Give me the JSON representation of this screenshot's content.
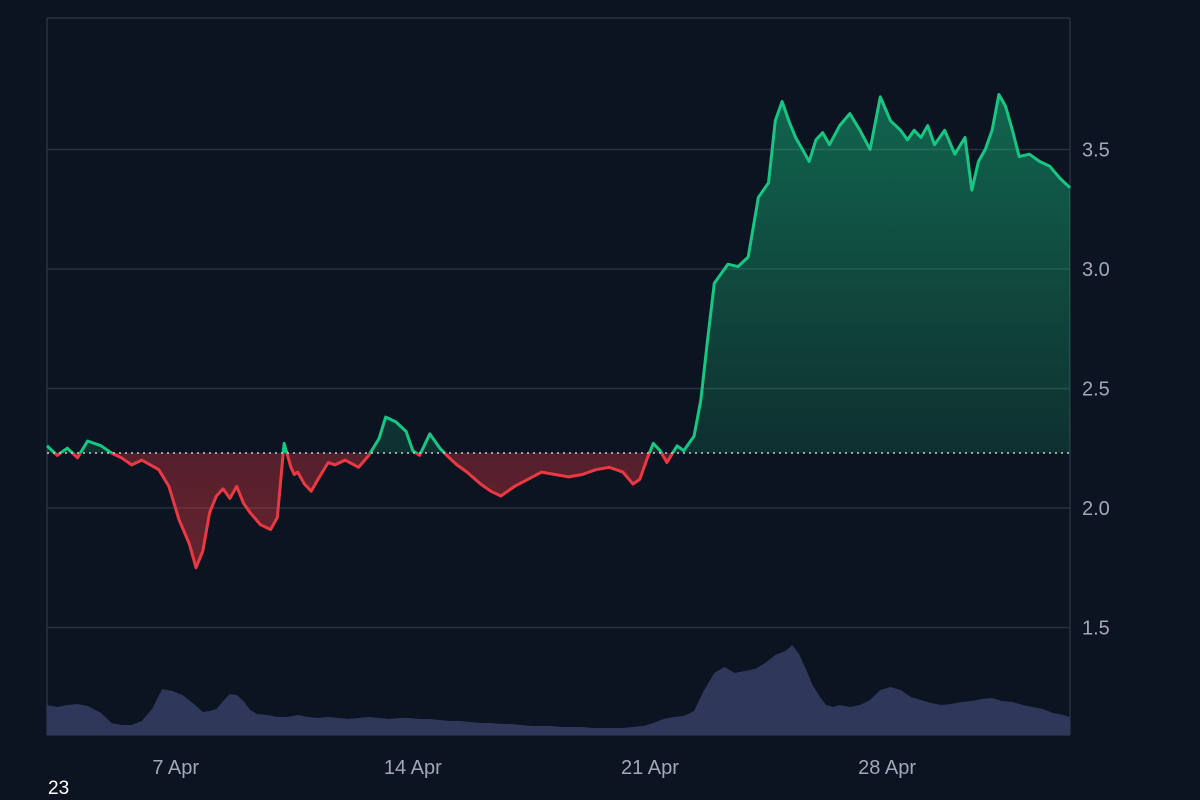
{
  "colors": {
    "background": "#0d1421",
    "grid": "#2b313f",
    "up": "#16c784",
    "down": "#ea3943",
    "volume": "#2f3a5f",
    "baseline": "#c8ccd6",
    "ticks": "#a1a7bb"
  },
  "corner_label": "23",
  "chart_data": {
    "type": "line",
    "title": "",
    "xlabel": "",
    "ylabel": "",
    "baseline_value": 2.23,
    "ylim": [
      1.05,
      4.05
    ],
    "y_ticks": [
      "1.5",
      "2.0",
      "2.5",
      "3.0",
      "3.5"
    ],
    "x_ticks": [
      {
        "label": "7 Apr",
        "day": 7
      },
      {
        "label": "14 Apr",
        "day": 14
      },
      {
        "label": "21 Apr",
        "day": 21
      },
      {
        "label": "28 Apr",
        "day": 28
      }
    ],
    "xlim_days": [
      3.2,
      33.4
    ],
    "grid": true,
    "series": [
      {
        "x_days": [
          3.2,
          3.5,
          3.8,
          4.1,
          4.4,
          4.8,
          5.1,
          5.4,
          5.7,
          6.0,
          6.5,
          6.8,
          7.1,
          7.4,
          7.6,
          7.8,
          8.0,
          8.2,
          8.4,
          8.6,
          8.8,
          9.0,
          9.2,
          9.5,
          9.8,
          10.0,
          10.2,
          10.4,
          10.5,
          10.6,
          10.8,
          11.0,
          11.2,
          11.5,
          11.7,
          12.0,
          12.4,
          12.7,
          13.0,
          13.2,
          13.5,
          13.8,
          14.0,
          14.2,
          14.5,
          14.8,
          15.0,
          15.3,
          15.6,
          16.0,
          16.3,
          16.6,
          17.0,
          17.4,
          17.8,
          18.2,
          18.6,
          19.0,
          19.4,
          19.8,
          20.2,
          20.5,
          20.7,
          20.9,
          21.1,
          21.3,
          21.5,
          21.8,
          22.0,
          22.3,
          22.5,
          22.7,
          22.9,
          23.1,
          23.3,
          23.6,
          23.9,
          24.2,
          24.5,
          24.7,
          24.9,
          25.1,
          25.3,
          25.5,
          25.7,
          25.9,
          26.1,
          26.3,
          26.6,
          26.9,
          27.2,
          27.5,
          27.8,
          28.1,
          28.4,
          28.6,
          28.8,
          29.0,
          29.2,
          29.4,
          29.7,
          30.0,
          30.3,
          30.5,
          30.7,
          30.9,
          31.1,
          31.3,
          31.5,
          31.7,
          31.9,
          32.2,
          32.5,
          32.8,
          33.1,
          33.4
        ],
        "values": [
          2.26,
          2.22,
          2.25,
          2.21,
          2.28,
          2.26,
          2.23,
          2.21,
          2.18,
          2.2,
          2.16,
          2.09,
          1.95,
          1.85,
          1.75,
          1.82,
          1.98,
          2.05,
          2.08,
          2.04,
          2.09,
          2.02,
          1.98,
          1.93,
          1.91,
          1.96,
          2.27,
          2.17,
          2.14,
          2.15,
          2.1,
          2.07,
          2.12,
          2.19,
          2.18,
          2.2,
          2.17,
          2.22,
          2.29,
          2.38,
          2.36,
          2.32,
          2.24,
          2.22,
          2.31,
          2.25,
          2.22,
          2.18,
          2.15,
          2.1,
          2.07,
          2.05,
          2.09,
          2.12,
          2.15,
          2.14,
          2.13,
          2.14,
          2.16,
          2.17,
          2.15,
          2.1,
          2.12,
          2.2,
          2.27,
          2.24,
          2.19,
          2.26,
          2.24,
          2.3,
          2.45,
          2.7,
          2.94,
          2.98,
          3.02,
          3.01,
          3.05,
          3.3,
          3.36,
          3.62,
          3.7,
          3.62,
          3.55,
          3.5,
          3.45,
          3.54,
          3.57,
          3.52,
          3.6,
          3.65,
          3.58,
          3.5,
          3.72,
          3.62,
          3.58,
          3.54,
          3.58,
          3.55,
          3.6,
          3.52,
          3.58,
          3.48,
          3.55,
          3.33,
          3.45,
          3.5,
          3.58,
          3.73,
          3.68,
          3.58,
          3.47,
          3.48,
          3.45,
          3.43,
          3.38,
          3.34
        ]
      }
    ],
    "volume": {
      "x_days": [
        3.2,
        3.5,
        3.8,
        4.1,
        4.4,
        4.8,
        5.1,
        5.4,
        5.7,
        6.0,
        6.3,
        6.6,
        6.9,
        7.2,
        7.5,
        7.8,
        8.0,
        8.2,
        8.4,
        8.6,
        8.8,
        9.0,
        9.2,
        9.4,
        9.7,
        10.0,
        10.3,
        10.6,
        10.9,
        11.2,
        11.5,
        11.8,
        12.1,
        12.4,
        12.7,
        13.0,
        13.3,
        13.6,
        13.9,
        14.2,
        14.5,
        14.8,
        15.1,
        15.4,
        15.7,
        16.0,
        16.3,
        16.6,
        16.9,
        17.2,
        17.5,
        17.8,
        18.1,
        18.4,
        18.7,
        19.0,
        19.3,
        19.6,
        19.9,
        20.2,
        20.5,
        20.8,
        21.1,
        21.4,
        21.7,
        22.0,
        22.3,
        22.6,
        22.9,
        23.2,
        23.5,
        23.8,
        24.1,
        24.4,
        24.7,
        25.0,
        25.2,
        25.4,
        25.6,
        25.8,
        26.0,
        26.2,
        26.4,
        26.6,
        26.9,
        27.2,
        27.5,
        27.8,
        28.1,
        28.4,
        28.7,
        29.0,
        29.3,
        29.6,
        29.9,
        30.2,
        30.5,
        30.8,
        31.1,
        31.4,
        31.7,
        32.0,
        32.3,
        32.6,
        32.9,
        33.2,
        33.4
      ],
      "values": [
        0.3,
        0.28,
        0.3,
        0.31,
        0.29,
        0.22,
        0.12,
        0.1,
        0.1,
        0.14,
        0.26,
        0.46,
        0.44,
        0.4,
        0.32,
        0.23,
        0.24,
        0.26,
        0.34,
        0.41,
        0.4,
        0.34,
        0.25,
        0.21,
        0.2,
        0.18,
        0.18,
        0.2,
        0.18,
        0.17,
        0.18,
        0.17,
        0.16,
        0.17,
        0.18,
        0.17,
        0.16,
        0.17,
        0.17,
        0.16,
        0.16,
        0.15,
        0.14,
        0.14,
        0.13,
        0.12,
        0.12,
        0.11,
        0.11,
        0.1,
        0.09,
        0.09,
        0.09,
        0.08,
        0.08,
        0.08,
        0.07,
        0.07,
        0.07,
        0.07,
        0.08,
        0.09,
        0.12,
        0.16,
        0.18,
        0.19,
        0.24,
        0.45,
        0.62,
        0.68,
        0.62,
        0.64,
        0.66,
        0.72,
        0.8,
        0.84,
        0.9,
        0.81,
        0.66,
        0.5,
        0.39,
        0.3,
        0.28,
        0.3,
        0.28,
        0.3,
        0.35,
        0.45,
        0.48,
        0.45,
        0.38,
        0.35,
        0.32,
        0.3,
        0.31,
        0.33,
        0.34,
        0.36,
        0.37,
        0.34,
        0.33,
        0.3,
        0.28,
        0.26,
        0.22,
        0.2,
        0.18
      ]
    }
  }
}
